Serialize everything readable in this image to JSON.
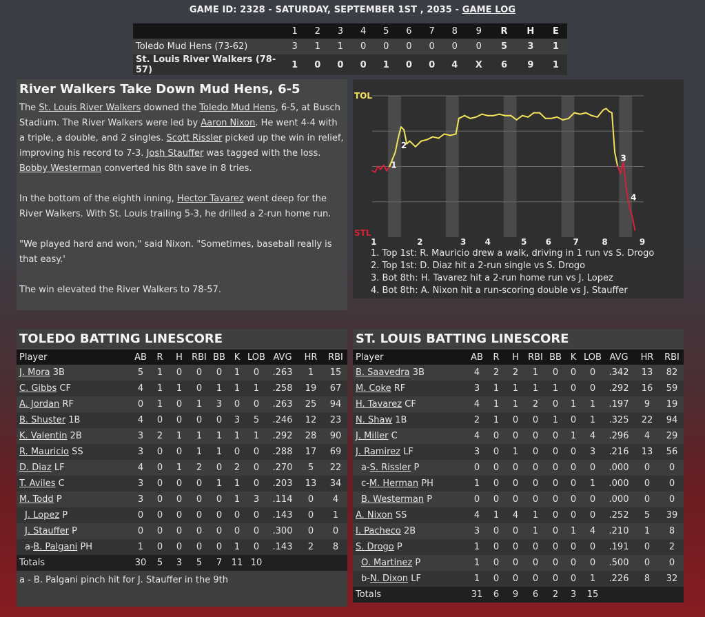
{
  "header": {
    "text": "GAME ID: 2328 - SATURDAY, SEPTEMBER 1ST , 2035 - ",
    "link": "GAME LOG"
  },
  "linescore": {
    "headers": [
      "",
      "1",
      "2",
      "3",
      "4",
      "5",
      "6",
      "7",
      "8",
      "9",
      "R",
      "H",
      "E"
    ],
    "rows": [
      {
        "team": "Toledo Mud Hens (73-62)",
        "innings": [
          "3",
          "1",
          "1",
          "0",
          "0",
          "0",
          "0",
          "0",
          "0"
        ],
        "r": "5",
        "h": "3",
        "e": "1"
      },
      {
        "team": "St. Louis River Walkers (78-57)",
        "innings": [
          "1",
          "0",
          "0",
          "0",
          "1",
          "0",
          "0",
          "4",
          "X"
        ],
        "r": "6",
        "h": "9",
        "e": "1"
      }
    ]
  },
  "story": {
    "title": "River Walkers Take Down Mud Hens, 6-5",
    "p1": [
      {
        "t": "The "
      },
      {
        "t": "St. Louis River Walkers",
        "u": true
      },
      {
        "t": " downed the "
      },
      {
        "t": "Toledo Mud Hens",
        "u": true
      },
      {
        "t": ", 6-5, at Busch Stadium. The River Walkers were led by "
      },
      {
        "t": "Aaron Nixon",
        "u": true
      },
      {
        "t": ". He went 4-4 with a triple, a double, and 2 singles. "
      },
      {
        "t": "Scott Rissler",
        "u": true
      },
      {
        "t": " picked up the win in relief, improving his record to 7-3. "
      },
      {
        "t": "Josh Stauffer",
        "u": true
      },
      {
        "t": " was tagged with the loss. "
      },
      {
        "t": "Bobby Westerman",
        "u": true
      },
      {
        "t": " converted his 8th save in 8 tries."
      }
    ],
    "p2": [
      {
        "t": "In the bottom of the eighth inning, "
      },
      {
        "t": "Hector Tavarez",
        "u": true
      },
      {
        "t": " went deep for the River Walkers. With St. Louis trailing 5-3, he drilled a 2-run home run."
      }
    ],
    "p3": [
      {
        "t": "\"We played hard and won,\" said Nixon. \"Sometimes, baseball really is that easy.'"
      }
    ],
    "p4": [
      {
        "t": "The win elevated the River Walkers to 78-57."
      }
    ]
  },
  "chart_data": {
    "type": "line",
    "top_label": "TOL",
    "bottom_label": "STL",
    "ylim": [
      0,
      1
    ],
    "x_ticks": [
      "1",
      "2",
      "3",
      "4",
      "5",
      "6",
      "7",
      "8",
      "9"
    ],
    "markers": [
      {
        "label": "1",
        "x": 0.65,
        "y": 0.49
      },
      {
        "label": "2",
        "x": 1.0,
        "y": 0.63
      },
      {
        "label": "3",
        "x": 8.6,
        "y": 0.54
      },
      {
        "label": "4",
        "x": 8.95,
        "y": 0.26
      }
    ],
    "x": [
      0.0,
      0.1,
      0.2,
      0.3,
      0.4,
      0.5,
      0.6,
      0.7,
      0.8,
      0.9,
      1.0,
      1.1,
      1.2,
      1.3,
      1.5,
      1.7,
      1.9,
      2.1,
      2.3,
      2.5,
      2.7,
      2.9,
      3.0,
      3.2,
      3.4,
      3.6,
      3.8,
      4.0,
      4.2,
      4.4,
      4.6,
      4.8,
      5.0,
      5.2,
      5.4,
      5.6,
      5.8,
      6.0,
      6.2,
      6.4,
      6.6,
      6.8,
      7.0,
      7.2,
      7.4,
      7.6,
      7.8,
      8.0,
      8.1,
      8.2,
      8.3,
      8.4,
      8.5,
      8.6,
      8.7,
      8.8,
      8.9,
      9.0,
      9.1
    ],
    "y": [
      0.47,
      0.46,
      0.5,
      0.48,
      0.51,
      0.47,
      0.5,
      0.55,
      0.6,
      0.7,
      0.78,
      0.76,
      0.66,
      0.68,
      0.64,
      0.68,
      0.69,
      0.71,
      0.7,
      0.73,
      0.72,
      0.73,
      0.84,
      0.86,
      0.84,
      0.85,
      0.87,
      0.86,
      0.86,
      0.87,
      0.86,
      0.86,
      0.83,
      0.86,
      0.85,
      0.88,
      0.88,
      0.84,
      0.84,
      0.85,
      0.83,
      0.84,
      0.88,
      0.87,
      0.88,
      0.86,
      0.85,
      0.9,
      0.91,
      0.89,
      0.88,
      0.6,
      0.5,
      0.45,
      0.53,
      0.34,
      0.22,
      0.15,
      0.05
    ],
    "series": [
      {
        "name": "",
        "color_tol": "#f2e35a",
        "color_stl": "#d3213a"
      }
    ]
  },
  "chart_notes": [
    "1. Top 1st: R. Mauricio drew a walk, driving in 1 run vs S. Drogo",
    "2. Top 1st: D. Diaz hit a 2-run single vs S. Drogo",
    "3. Bot 8th: H. Tavarez hit a 2-run home run vs J. Lopez",
    "4. Bot 8th: A. Nixon hit a run-scoring double vs J. Stauffer"
  ],
  "batting_columns": [
    "Player",
    "AB",
    "R",
    "H",
    "RBI",
    "BB",
    "K",
    "LOB",
    "AVG",
    "HR",
    "RBI"
  ],
  "toledo": {
    "title": "TOLEDO BATTING LINESCORE",
    "rows": [
      {
        "pre": "",
        "name": "J. Mora",
        "pos": "3B",
        "ind": false,
        "s": [
          "5",
          "1",
          "0",
          "0",
          "0",
          "1",
          "0",
          ".263",
          "1",
          "15"
        ]
      },
      {
        "pre": "",
        "name": "C. Gibbs",
        "pos": "CF",
        "ind": false,
        "s": [
          "4",
          "1",
          "1",
          "0",
          "1",
          "1",
          "1",
          ".258",
          "19",
          "67"
        ]
      },
      {
        "pre": "",
        "name": "A. Jordan",
        "pos": "RF",
        "ind": false,
        "s": [
          "0",
          "1",
          "0",
          "1",
          "3",
          "0",
          "0",
          ".263",
          "25",
          "94"
        ]
      },
      {
        "pre": "",
        "name": "B. Shuster",
        "pos": "1B",
        "ind": false,
        "s": [
          "4",
          "0",
          "0",
          "0",
          "0",
          "3",
          "5",
          ".246",
          "12",
          "23"
        ]
      },
      {
        "pre": "",
        "name": "K. Valentin",
        "pos": "2B",
        "ind": false,
        "s": [
          "3",
          "2",
          "1",
          "1",
          "1",
          "1",
          "1",
          ".292",
          "28",
          "90"
        ]
      },
      {
        "pre": "",
        "name": "R. Mauricio",
        "pos": "SS",
        "ind": false,
        "s": [
          "3",
          "0",
          "0",
          "1",
          "1",
          "0",
          "0",
          ".288",
          "17",
          "69"
        ]
      },
      {
        "pre": "",
        "name": "D. Diaz",
        "pos": "LF",
        "ind": false,
        "s": [
          "4",
          "0",
          "1",
          "2",
          "0",
          "2",
          "0",
          ".270",
          "5",
          "22"
        ]
      },
      {
        "pre": "",
        "name": "T. Aviles",
        "pos": "C",
        "ind": false,
        "s": [
          "3",
          "0",
          "0",
          "0",
          "1",
          "1",
          "0",
          ".203",
          "13",
          "34"
        ]
      },
      {
        "pre": "",
        "name": "M. Todd",
        "pos": "P",
        "ind": false,
        "s": [
          "3",
          "0",
          "0",
          "0",
          "0",
          "1",
          "3",
          ".114",
          "0",
          "4"
        ]
      },
      {
        "pre": "",
        "name": "J. Lopez",
        "pos": "P",
        "ind": true,
        "s": [
          "0",
          "0",
          "0",
          "0",
          "0",
          "0",
          "0",
          ".143",
          "0",
          "1"
        ]
      },
      {
        "pre": "",
        "name": "J. Stauffer",
        "pos": "P",
        "ind": true,
        "s": [
          "0",
          "0",
          "0",
          "0",
          "0",
          "0",
          "0",
          ".300",
          "0",
          "0"
        ]
      },
      {
        "pre": "a-",
        "name": "B. Palgani",
        "pos": "PH",
        "ind": true,
        "s": [
          "1",
          "0",
          "0",
          "0",
          "0",
          "1",
          "0",
          ".143",
          "2",
          "8"
        ]
      }
    ],
    "totals": {
      "label": "Totals",
      "s": [
        "30",
        "5",
        "3",
        "5",
        "7",
        "11",
        "10",
        "",
        "",
        ""
      ]
    },
    "footnote": "a - B. Palgani pinch hit for J. Stauffer in the 9th"
  },
  "stlouis": {
    "title": "ST. LOUIS BATTING LINESCORE",
    "rows": [
      {
        "pre": "",
        "name": "B. Saavedra",
        "pos": "3B",
        "ind": false,
        "s": [
          "4",
          "2",
          "2",
          "1",
          "0",
          "0",
          "0",
          ".342",
          "13",
          "82"
        ]
      },
      {
        "pre": "",
        "name": "M. Coke",
        "pos": "RF",
        "ind": false,
        "s": [
          "3",
          "1",
          "1",
          "1",
          "1",
          "0",
          "0",
          ".292",
          "16",
          "59"
        ]
      },
      {
        "pre": "",
        "name": "H. Tavarez",
        "pos": "CF",
        "ind": false,
        "s": [
          "4",
          "1",
          "1",
          "2",
          "0",
          "1",
          "1",
          ".197",
          "9",
          "19"
        ]
      },
      {
        "pre": "",
        "name": "N. Shaw",
        "pos": "1B",
        "ind": false,
        "s": [
          "2",
          "1",
          "0",
          "0",
          "1",
          "0",
          "1",
          ".325",
          "22",
          "94"
        ]
      },
      {
        "pre": "",
        "name": "J. Miller",
        "pos": "C",
        "ind": false,
        "s": [
          "4",
          "0",
          "0",
          "0",
          "0",
          "1",
          "4",
          ".296",
          "4",
          "29"
        ]
      },
      {
        "pre": "",
        "name": "J. Ramirez",
        "pos": "LF",
        "ind": false,
        "s": [
          "3",
          "0",
          "1",
          "0",
          "0",
          "0",
          "3",
          ".216",
          "13",
          "56"
        ]
      },
      {
        "pre": "a-",
        "name": "S. Rissler",
        "pos": "P",
        "ind": true,
        "s": [
          "0",
          "0",
          "0",
          "0",
          "0",
          "0",
          "0",
          ".000",
          "0",
          "0"
        ]
      },
      {
        "pre": "c-",
        "name": "M. Herman",
        "pos": "PH",
        "ind": true,
        "s": [
          "1",
          "0",
          "0",
          "0",
          "0",
          "0",
          "1",
          ".000",
          "0",
          "0"
        ]
      },
      {
        "pre": "",
        "name": "B. Westerman",
        "pos": "P",
        "ind": true,
        "s": [
          "0",
          "0",
          "0",
          "0",
          "0",
          "0",
          "0",
          ".000",
          "0",
          "0"
        ]
      },
      {
        "pre": "",
        "name": "A. Nixon",
        "pos": "SS",
        "ind": false,
        "s": [
          "4",
          "1",
          "4",
          "1",
          "0",
          "0",
          "0",
          ".252",
          "5",
          "39"
        ]
      },
      {
        "pre": "",
        "name": "I. Pacheco",
        "pos": "2B",
        "ind": false,
        "s": [
          "3",
          "0",
          "0",
          "1",
          "0",
          "1",
          "4",
          ".210",
          "1",
          "8"
        ]
      },
      {
        "pre": "",
        "name": "S. Drogo",
        "pos": "P",
        "ind": false,
        "s": [
          "1",
          "0",
          "0",
          "0",
          "0",
          "0",
          "0",
          ".191",
          "0",
          "2"
        ]
      },
      {
        "pre": "",
        "name": "O. Martinez",
        "pos": "P",
        "ind": true,
        "s": [
          "1",
          "0",
          "0",
          "0",
          "0",
          "0",
          "0",
          ".500",
          "0",
          "0"
        ]
      },
      {
        "pre": "b-",
        "name": "N. Dixon",
        "pos": "LF",
        "ind": true,
        "s": [
          "1",
          "0",
          "0",
          "0",
          "0",
          "0",
          "1",
          ".226",
          "8",
          "32"
        ]
      }
    ],
    "totals": {
      "label": "Totals",
      "s": [
        "31",
        "6",
        "9",
        "6",
        "2",
        "3",
        "15",
        "",
        "",
        ""
      ]
    }
  }
}
